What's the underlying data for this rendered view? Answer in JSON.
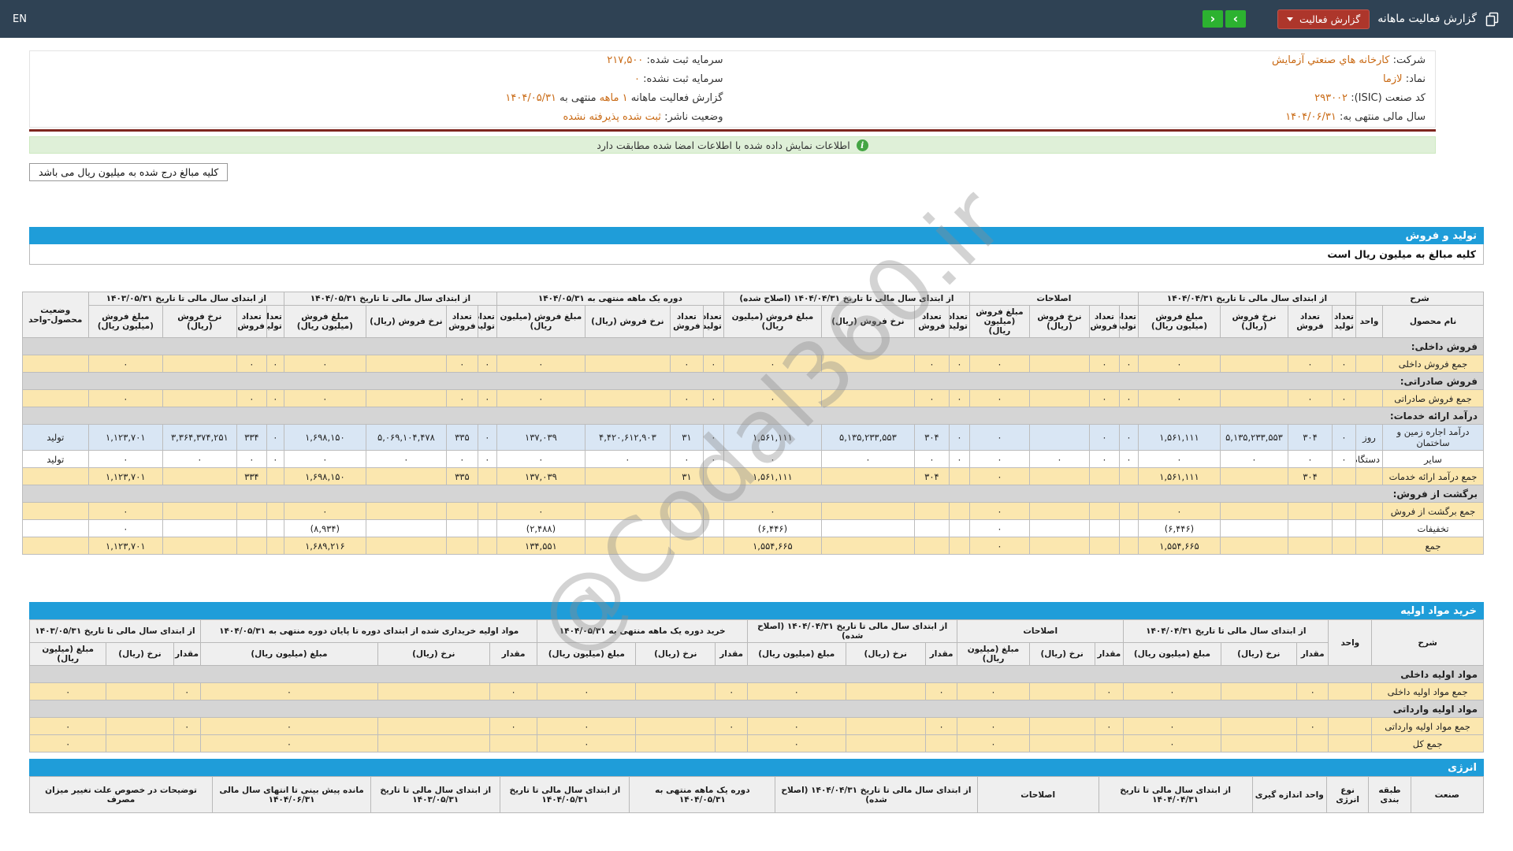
{
  "topbar": {
    "language_label": "EN",
    "title": "گزارش فعالیت ماهانه",
    "report_button_label": "گزارش فعالیت",
    "nav_next_symbol": "›",
    "nav_prev_symbol": "‹"
  },
  "info": {
    "company_label": "شرکت:",
    "company_value": "کارخانه هاي صنعتي آزمايش",
    "symbol_label": "نماد:",
    "symbol_value": "لازما",
    "isic_label": "کد صنعت (ISIC):",
    "isic_value": "۲۹۳۰۰۲",
    "fiscal_year_label": "سال مالی منتهی به:",
    "fiscal_year_value": "۱۴۰۴/۰۶/۳۱",
    "registered_capital_label": "سرمایه ثبت شده:",
    "registered_capital_value": "۲۱۷,۵۰۰",
    "unregistered_capital_label": "سرمایه ثبت نشده:",
    "unregistered_capital_value": "۰",
    "report_period_label": "گزارش فعالیت ماهانه",
    "report_period_value": "۱ ماهه",
    "report_period_mid": "منتهی به",
    "report_period_date": "۱۴۰۴/۰۵/۳۱",
    "publisher_status_label": "وضعیت ناشر:",
    "publisher_status_value": "ثبت شده پذیرفته نشده"
  },
  "banner": {
    "text": "اطلاعات نمایش داده شده با اطلاعات امضا شده مطابقت دارد"
  },
  "note": {
    "text": "کلیه مبالغ درج شده به میلیون ریال می باشد"
  },
  "watermark": {
    "text": "@Codal360.ir"
  },
  "production_table": {
    "title": "تولید و فروش",
    "subtitle": "کلیه مبالغ به میلیون ریال است",
    "header": {
      "desc": "شرح",
      "product": "نام محصول",
      "unit": "واحد",
      "status": "وضعیت محصول-واحد",
      "sub_columns": [
        "تعداد تولید",
        "تعداد فروش",
        "نرخ فروش (ریال)",
        "مبلغ فروش (میلیون ریال)"
      ],
      "groups": [
        "از ابتدای سال مالی تا تاریخ ۱۴۰۴/۰۴/۳۱",
        "اصلاحات",
        "از ابتدای سال مالی تا تاریخ ۱۴۰۴/۰۴/۳۱ (اصلاح شده)",
        "دوره یک ماهه منتهی به ۱۴۰۴/۰۵/۳۱",
        "از ابتدای سال مالی تا تاریخ ۱۴۰۴/۰۵/۳۱",
        "از ابتدای سال مالی تا تاریخ ۱۴۰۳/۰۵/۳۱"
      ]
    },
    "rows": [
      {
        "type": "section",
        "label": "فروش داخلی:"
      },
      {
        "type": "data",
        "style": "sum",
        "name": "جمع فروش داخلی",
        "unit": "",
        "status": "",
        "cells": [
          [
            "۰",
            "۰",
            "",
            "۰"
          ],
          [
            "۰",
            "۰",
            "",
            "۰"
          ],
          [
            "۰",
            "۰",
            "",
            "۰"
          ],
          [
            "۰",
            "۰",
            "",
            "۰"
          ],
          [
            "۰",
            "۰",
            "",
            "۰"
          ],
          [
            "۰",
            "۰",
            "",
            "۰"
          ]
        ]
      },
      {
        "type": "section",
        "label": "فروش صادراتی:"
      },
      {
        "type": "data",
        "style": "sum",
        "name": "جمع فروش صادراتی",
        "unit": "",
        "status": "",
        "cells": [
          [
            "۰",
            "۰",
            "",
            "۰"
          ],
          [
            "۰",
            "۰",
            "",
            "۰"
          ],
          [
            "۰",
            "۰",
            "",
            "۰"
          ],
          [
            "۰",
            "۰",
            "",
            "۰"
          ],
          [
            "۰",
            "۰",
            "",
            "۰"
          ],
          [
            "۰",
            "۰",
            "",
            "۰"
          ]
        ]
      },
      {
        "type": "section",
        "label": "درآمد ارائه خدمات:"
      },
      {
        "type": "data",
        "style": "blue",
        "name": "درآمد اجاره زمین و ساختمان",
        "unit": "روز",
        "status": "تولید",
        "cells": [
          [
            "۰",
            "۳۰۴",
            "۵,۱۳۵,۲۳۳,۵۵۳",
            "۱,۵۶۱,۱۱۱"
          ],
          [
            "۰",
            "۰",
            "",
            "۰"
          ],
          [
            "۰",
            "۳۰۴",
            "۵,۱۳۵,۲۳۳,۵۵۳",
            "۱,۵۶۱,۱۱۱"
          ],
          [
            "۰",
            "۳۱",
            "۴,۴۲۰,۶۱۲,۹۰۳",
            "۱۳۷,۰۳۹"
          ],
          [
            "۰",
            "۳۳۵",
            "۵,۰۶۹,۱۰۴,۴۷۸",
            "۱,۶۹۸,۱۵۰"
          ],
          [
            "۰",
            "۳۳۴",
            "۳,۳۶۴,۳۷۴,۲۵۱",
            "۱,۱۲۳,۷۰۱"
          ]
        ]
      },
      {
        "type": "data",
        "style": "plain",
        "name": "سایر",
        "unit": "دستگاه",
        "status": "تولید",
        "cells": [
          [
            "۰",
            "۰",
            "۰",
            "۰"
          ],
          [
            "۰",
            "۰",
            "۰",
            "۰"
          ],
          [
            "۰",
            "۰",
            "۰",
            "۰"
          ],
          [
            "۰",
            "۰",
            "۰",
            "۰"
          ],
          [
            "۰",
            "۰",
            "۰",
            "۰"
          ],
          [
            "۰",
            "۰",
            "۰",
            "۰"
          ]
        ]
      },
      {
        "type": "data",
        "style": "sum",
        "name": "جمع درآمد ارائه خدمات",
        "unit": "",
        "status": "",
        "cells": [
          [
            "",
            "۳۰۴",
            "",
            "۱,۵۶۱,۱۱۱"
          ],
          [
            "",
            "",
            "",
            "۰"
          ],
          [
            "",
            "۳۰۴",
            "",
            "۱,۵۶۱,۱۱۱"
          ],
          [
            "",
            "۳۱",
            "",
            "۱۳۷,۰۳۹"
          ],
          [
            "",
            "۳۳۵",
            "",
            "۱,۶۹۸,۱۵۰"
          ],
          [
            "",
            "۳۳۴",
            "",
            "۱,۱۲۳,۷۰۱"
          ]
        ]
      },
      {
        "type": "section",
        "label": "برگشت از فروش:"
      },
      {
        "type": "data",
        "style": "sum",
        "name": "جمع برگشت از فروش",
        "unit": "",
        "status": "",
        "cells": [
          [
            "",
            "",
            "",
            "۰"
          ],
          [
            "",
            "",
            "",
            "۰"
          ],
          [
            "",
            "",
            "",
            "۰"
          ],
          [
            "",
            "",
            "",
            "۰"
          ],
          [
            "",
            "",
            "",
            "۰"
          ],
          [
            "",
            "",
            "",
            "۰"
          ]
        ]
      },
      {
        "type": "data",
        "style": "plain",
        "name": "تخفیفات",
        "unit": "",
        "status": "",
        "cells": [
          [
            "",
            "",
            "",
            "(۶,۴۴۶)"
          ],
          [
            "",
            "",
            "",
            "۰"
          ],
          [
            "",
            "",
            "",
            "(۶,۴۴۶)"
          ],
          [
            "",
            "",
            "",
            "(۲,۴۸۸)"
          ],
          [
            "",
            "",
            "",
            "(۸,۹۳۴)"
          ],
          [
            "",
            "",
            "",
            "۰"
          ]
        ]
      },
      {
        "type": "data",
        "style": "sum",
        "name": "جمع",
        "unit": "",
        "status": "",
        "cells": [
          [
            "",
            "",
            "",
            "۱,۵۵۴,۶۶۵"
          ],
          [
            "",
            "",
            "",
            "۰"
          ],
          [
            "",
            "",
            "",
            "۱,۵۵۴,۶۶۵"
          ],
          [
            "",
            "",
            "",
            "۱۳۴,۵۵۱"
          ],
          [
            "",
            "",
            "",
            "۱,۶۸۹,۲۱۶"
          ],
          [
            "",
            "",
            "",
            "۱,۱۲۳,۷۰۱"
          ]
        ]
      }
    ]
  },
  "materials_table": {
    "title": "خرید مواد اولیه",
    "header": {
      "desc": "شرح",
      "unit": "واحد",
      "sub_columns": [
        "مقدار",
        "نرخ (ریال)",
        "مبلغ (میلیون ریال)"
      ],
      "groups": [
        "از ابتدای سال مالی تا تاریخ ۱۴۰۴/۰۴/۳۱",
        "اصلاحات",
        "از ابتدای سال مالی تا تاریخ ۱۴۰۴/۰۴/۳۱ (اصلاح شده)",
        "خرید دوره یک ماهه منتهی به ۱۴۰۴/۰۵/۳۱",
        "مواد اولیه خریداری شده از ابتدای دوره تا پایان دوره منتهی به ۱۴۰۴/۰۵/۳۱",
        "از ابتدای سال مالی تا تاریخ ۱۴۰۳/۰۵/۳۱"
      ]
    },
    "rows": [
      {
        "type": "section",
        "label": "مواد اولیه داخلی"
      },
      {
        "type": "data",
        "style": "sum",
        "name": "جمع مواد اولیه داخلی",
        "unit": "",
        "cells": [
          [
            "۰",
            "",
            "۰"
          ],
          [
            "۰",
            "",
            "۰"
          ],
          [
            "۰",
            "",
            "۰"
          ],
          [
            "۰",
            "",
            "۰"
          ],
          [
            "۰",
            "",
            "۰"
          ],
          [
            "۰",
            "",
            "۰"
          ]
        ]
      },
      {
        "type": "section",
        "label": "مواد اولیه وارداتی"
      },
      {
        "type": "data",
        "style": "sum",
        "name": "جمع مواد اولیه وارداتی",
        "unit": "",
        "cells": [
          [
            "۰",
            "",
            "۰"
          ],
          [
            "۰",
            "",
            "۰"
          ],
          [
            "۰",
            "",
            "۰"
          ],
          [
            "۰",
            "",
            "۰"
          ],
          [
            "۰",
            "",
            "۰"
          ],
          [
            "۰",
            "",
            "۰"
          ]
        ]
      },
      {
        "type": "data",
        "style": "sum",
        "name": "جمع کل",
        "unit": "",
        "cells": [
          [
            "",
            "",
            "۰"
          ],
          [
            "",
            "",
            "۰"
          ],
          [
            "",
            "",
            "۰"
          ],
          [
            "",
            "",
            "۰"
          ],
          [
            "",
            "",
            "۰"
          ],
          [
            "",
            "",
            "۰"
          ]
        ]
      }
    ]
  },
  "energy_table": {
    "title": "انرژی",
    "header": {
      "industry": "صنعت",
      "classification": "طبقه بندی",
      "energy_type": "نوع انرژی",
      "measure_unit": "واحد اندازه گیری",
      "groups": [
        "از ابتدای سال مالی تا تاریخ ۱۴۰۴/۰۴/۳۱",
        "اصلاحات",
        "از ابتدای سال مالی تا تاریخ ۱۴۰۴/۰۴/۳۱ (اصلاح شده)",
        "دوره یک ماهه منتهی به ۱۴۰۴/۰۵/۳۱",
        "از ابتدای سال مالی تا تاریخ ۱۴۰۴/۰۵/۳۱",
        "از ابتدای سال مالی تا تاریخ ۱۴۰۳/۰۵/۳۱",
        "مانده پیش بینی تا انتهای سال مالی ۱۴۰۴/۰۶/۳۱",
        "توضیحات در خصوص علت تغییر میزان مصرف"
      ]
    }
  },
  "colors": {
    "topbar_bg": "#2f4254",
    "accent_blue": "#1f9dd9",
    "button_green": "#2cb230",
    "button_red": "#ad362b",
    "value_orange": "#c96a15",
    "row_yellow": "#fbe7af",
    "row_blue": "#d9e6f4",
    "banner_green": "#dff0d8",
    "negative_red": "#d40000",
    "divider_maroon": "#7e261f"
  }
}
